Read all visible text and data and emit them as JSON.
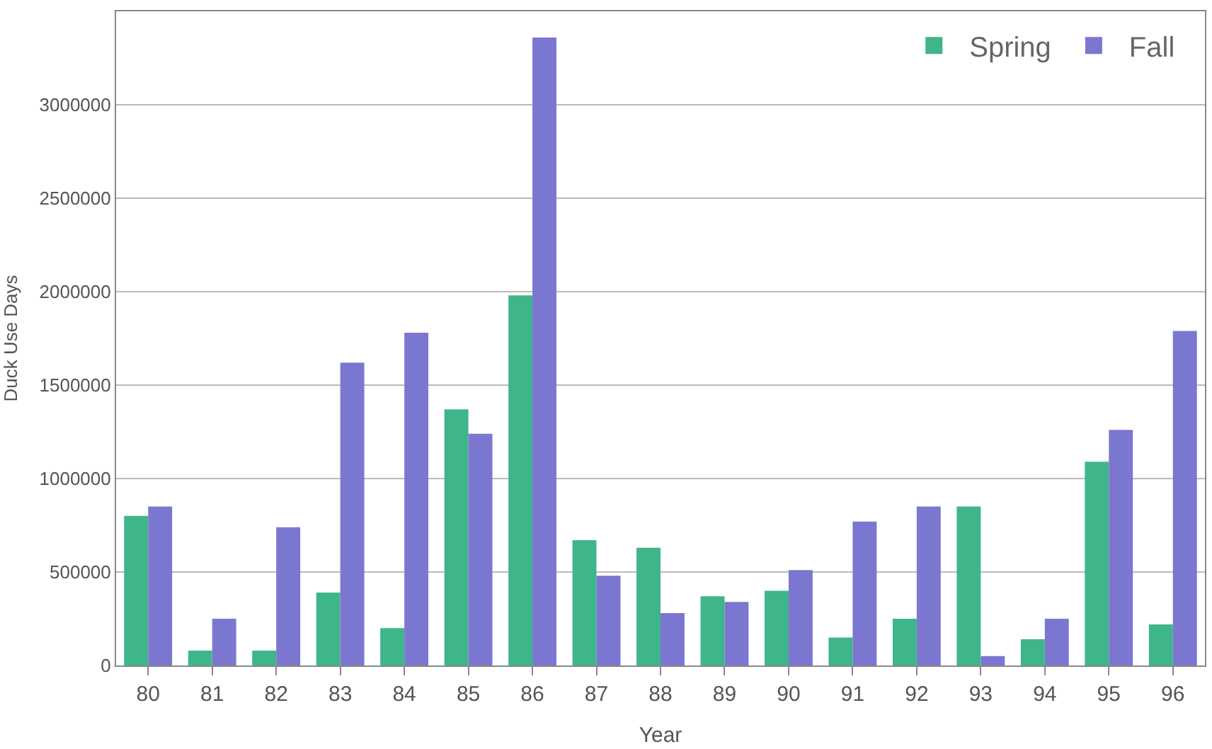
{
  "chart_data": {
    "type": "bar",
    "xlabel": "Year",
    "ylabel": "Duck Use Days",
    "categories": [
      "80",
      "81",
      "82",
      "83",
      "84",
      "85",
      "86",
      "87",
      "88",
      "89",
      "90",
      "91",
      "92",
      "93",
      "94",
      "95",
      "96"
    ],
    "series": [
      {
        "name": "Spring",
        "color": "#3fb58a",
        "values": [
          800000,
          80000,
          80000,
          390000,
          200000,
          1370000,
          1980000,
          670000,
          630000,
          370000,
          400000,
          150000,
          250000,
          850000,
          140000,
          1090000,
          220000
        ]
      },
      {
        "name": "Fall",
        "color": "#7b77d0",
        "values": [
          850000,
          250000,
          740000,
          1620000,
          1780000,
          1240000,
          3360000,
          480000,
          280000,
          340000,
          510000,
          770000,
          850000,
          50000,
          250000,
          1260000,
          1790000
        ]
      }
    ],
    "ylim": [
      0,
      3500000
    ],
    "yticks": [
      0,
      500000,
      1000000,
      1500000,
      2000000,
      2500000,
      3000000
    ],
    "grid": "y",
    "legend": "top right"
  }
}
